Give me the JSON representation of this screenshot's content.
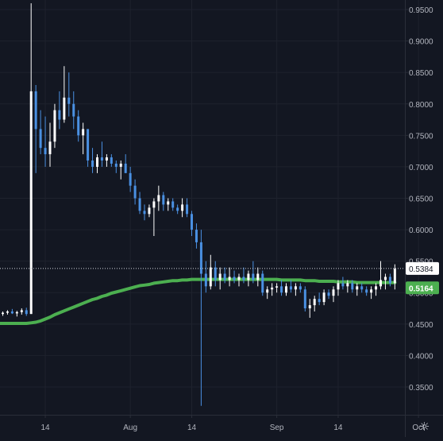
{
  "chart_data": {
    "type": "candlestick",
    "colors": {
      "background": "#131722",
      "grid": "#1e222d",
      "axis_text": "#b2b5be",
      "up": "#ffffff",
      "down": "#4a90e2",
      "moving_average": "#4caf50",
      "last_price_label_bg": "#ffffff",
      "last_price_label_text": "#131722",
      "ma_label_bg": "#4caf50",
      "ma_label_text": "#ffffff"
    },
    "ylim": [
      0.31,
      0.96
    ],
    "y_ticks": [
      {
        "value": 0.95,
        "label": "0.9500"
      },
      {
        "value": 0.9,
        "label": "0.9000"
      },
      {
        "value": 0.85,
        "label": "0.8500"
      },
      {
        "value": 0.8,
        "label": "0.8000"
      },
      {
        "value": 0.75,
        "label": "0.7500"
      },
      {
        "value": 0.7,
        "label": "0.7000"
      },
      {
        "value": 0.65,
        "label": "0.6500"
      },
      {
        "value": 0.6,
        "label": "0.6000"
      },
      {
        "value": 0.55,
        "label": "0.5500"
      },
      {
        "value": 0.5,
        "label": "0.5000"
      },
      {
        "value": 0.45,
        "label": "0.4500"
      },
      {
        "value": 0.4,
        "label": "0.4000"
      },
      {
        "value": 0.35,
        "label": "0.3500"
      }
    ],
    "x_ticks": [
      {
        "index": 9,
        "label": "14"
      },
      {
        "index": 27,
        "label": "Aug"
      },
      {
        "index": 40,
        "label": "14"
      },
      {
        "index": 58,
        "label": "Sep"
      },
      {
        "index": 71,
        "label": "14"
      },
      {
        "index": 88,
        "label": "Oct"
      }
    ],
    "last_price": {
      "value": 0.5384,
      "label": "0.5384"
    },
    "moving_average_last": {
      "value": 0.5164,
      "label": "0.5164"
    },
    "candles": [
      [
        0.466,
        0.47,
        0.463,
        0.468
      ],
      [
        0.468,
        0.472,
        0.465,
        0.47
      ],
      [
        0.47,
        0.474,
        0.466,
        0.467
      ],
      [
        0.467,
        0.471,
        0.462,
        0.469
      ],
      [
        0.469,
        0.475,
        0.465,
        0.472
      ],
      [
        0.472,
        0.476,
        0.463,
        0.466
      ],
      [
        0.466,
        0.96,
        0.466,
        0.82
      ],
      [
        0.82,
        0.83,
        0.69,
        0.76
      ],
      [
        0.76,
        0.79,
        0.72,
        0.73
      ],
      [
        0.73,
        0.78,
        0.7,
        0.72
      ],
      [
        0.72,
        0.77,
        0.7,
        0.74
      ],
      [
        0.74,
        0.8,
        0.73,
        0.79
      ],
      [
        0.79,
        0.82,
        0.76,
        0.775
      ],
      [
        0.775,
        0.86,
        0.77,
        0.81
      ],
      [
        0.81,
        0.85,
        0.78,
        0.8
      ],
      [
        0.8,
        0.82,
        0.76,
        0.78
      ],
      [
        0.78,
        0.79,
        0.74,
        0.75
      ],
      [
        0.75,
        0.77,
        0.72,
        0.76
      ],
      [
        0.76,
        0.76,
        0.7,
        0.71
      ],
      [
        0.71,
        0.73,
        0.69,
        0.7
      ],
      [
        0.7,
        0.72,
        0.69,
        0.715
      ],
      [
        0.715,
        0.74,
        0.7,
        0.71
      ],
      [
        0.71,
        0.72,
        0.7,
        0.715
      ],
      [
        0.715,
        0.72,
        0.7,
        0.705
      ],
      [
        0.705,
        0.71,
        0.69,
        0.7
      ],
      [
        0.7,
        0.71,
        0.68,
        0.705
      ],
      [
        0.705,
        0.72,
        0.69,
        0.69
      ],
      [
        0.69,
        0.7,
        0.66,
        0.67
      ],
      [
        0.67,
        0.68,
        0.64,
        0.65
      ],
      [
        0.65,
        0.66,
        0.625,
        0.63
      ],
      [
        0.63,
        0.64,
        0.615,
        0.625
      ],
      [
        0.625,
        0.64,
        0.62,
        0.635
      ],
      [
        0.635,
        0.65,
        0.59,
        0.645
      ],
      [
        0.645,
        0.67,
        0.63,
        0.655
      ],
      [
        0.655,
        0.66,
        0.63,
        0.64
      ],
      [
        0.64,
        0.65,
        0.63,
        0.645
      ],
      [
        0.645,
        0.65,
        0.63,
        0.635
      ],
      [
        0.635,
        0.64,
        0.625,
        0.63
      ],
      [
        0.63,
        0.65,
        0.62,
        0.64
      ],
      [
        0.64,
        0.65,
        0.62,
        0.625
      ],
      [
        0.625,
        0.63,
        0.59,
        0.6
      ],
      [
        0.6,
        0.61,
        0.57,
        0.58
      ],
      [
        0.58,
        0.6,
        0.32,
        0.53
      ],
      [
        0.53,
        0.55,
        0.5,
        0.51
      ],
      [
        0.51,
        0.56,
        0.505,
        0.54
      ],
      [
        0.54,
        0.55,
        0.51,
        0.52
      ],
      [
        0.52,
        0.54,
        0.505,
        0.53
      ],
      [
        0.53,
        0.54,
        0.515,
        0.52
      ],
      [
        0.52,
        0.54,
        0.51,
        0.525
      ],
      [
        0.525,
        0.535,
        0.515,
        0.52
      ],
      [
        0.52,
        0.53,
        0.51,
        0.525
      ],
      [
        0.525,
        0.54,
        0.515,
        0.52
      ],
      [
        0.52,
        0.535,
        0.51,
        0.53
      ],
      [
        0.53,
        0.55,
        0.515,
        0.52
      ],
      [
        0.52,
        0.54,
        0.51,
        0.53
      ],
      [
        0.53,
        0.535,
        0.495,
        0.5
      ],
      [
        0.5,
        0.51,
        0.49,
        0.505
      ],
      [
        0.505,
        0.515,
        0.495,
        0.508
      ],
      [
        0.508,
        0.515,
        0.5,
        0.51
      ],
      [
        0.51,
        0.52,
        0.495,
        0.5
      ],
      [
        0.5,
        0.515,
        0.495,
        0.51
      ],
      [
        0.51,
        0.52,
        0.5,
        0.505
      ],
      [
        0.505,
        0.515,
        0.495,
        0.51
      ],
      [
        0.51,
        0.515,
        0.5,
        0.505
      ],
      [
        0.505,
        0.51,
        0.47,
        0.475
      ],
      [
        0.475,
        0.49,
        0.46,
        0.48
      ],
      [
        0.48,
        0.495,
        0.47,
        0.49
      ],
      [
        0.49,
        0.5,
        0.48,
        0.485
      ],
      [
        0.485,
        0.505,
        0.48,
        0.5
      ],
      [
        0.5,
        0.505,
        0.49,
        0.495
      ],
      [
        0.495,
        0.51,
        0.485,
        0.505
      ],
      [
        0.505,
        0.52,
        0.495,
        0.515
      ],
      [
        0.515,
        0.525,
        0.505,
        0.51
      ],
      [
        0.51,
        0.52,
        0.5,
        0.515
      ],
      [
        0.515,
        0.52,
        0.5,
        0.505
      ],
      [
        0.505,
        0.515,
        0.495,
        0.51
      ],
      [
        0.51,
        0.515,
        0.5,
        0.505
      ],
      [
        0.505,
        0.51,
        0.495,
        0.5
      ],
      [
        0.5,
        0.51,
        0.49,
        0.505
      ],
      [
        0.505,
        0.515,
        0.495,
        0.51
      ],
      [
        0.51,
        0.55,
        0.505,
        0.52
      ],
      [
        0.52,
        0.53,
        0.505,
        0.525
      ],
      [
        0.525,
        0.53,
        0.51,
        0.515
      ],
      [
        0.515,
        0.545,
        0.505,
        0.538
      ]
    ],
    "moving_average": [
      0.451,
      0.451,
      0.451,
      0.451,
      0.451,
      0.451,
      0.452,
      0.453,
      0.455,
      0.458,
      0.461,
      0.465,
      0.468,
      0.471,
      0.474,
      0.477,
      0.48,
      0.483,
      0.486,
      0.489,
      0.491,
      0.494,
      0.496,
      0.499,
      0.501,
      0.503,
      0.505,
      0.507,
      0.509,
      0.511,
      0.512,
      0.513,
      0.515,
      0.516,
      0.517,
      0.518,
      0.519,
      0.519,
      0.52,
      0.52,
      0.521,
      0.521,
      0.521,
      0.521,
      0.521,
      0.521,
      0.521,
      0.521,
      0.521,
      0.521,
      0.521,
      0.521,
      0.521,
      0.521,
      0.521,
      0.521,
      0.521,
      0.521,
      0.521,
      0.52,
      0.52,
      0.52,
      0.52,
      0.52,
      0.519,
      0.519,
      0.519,
      0.518,
      0.518,
      0.518,
      0.518,
      0.517,
      0.517,
      0.517,
      0.517,
      0.516,
      0.516,
      0.516,
      0.516,
      0.516,
      0.516,
      0.516,
      0.516,
      0.516
    ]
  }
}
